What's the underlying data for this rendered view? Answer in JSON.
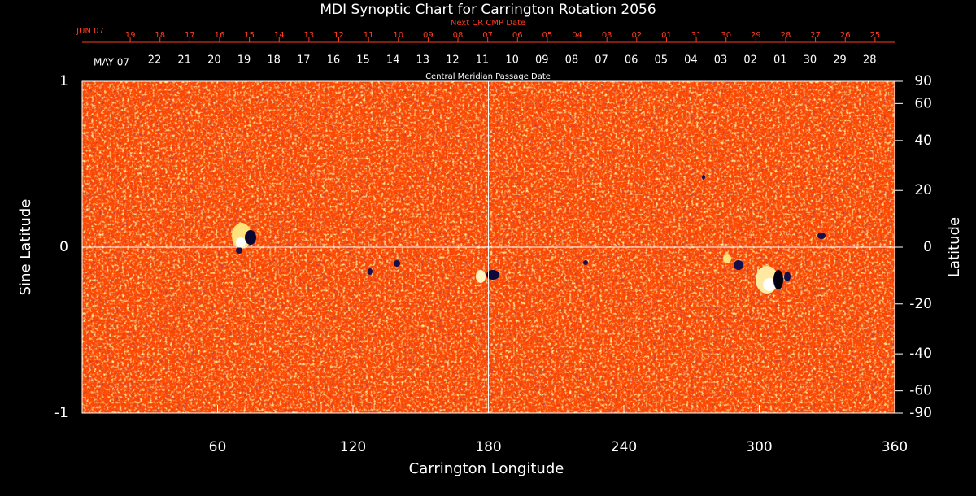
{
  "chart_data": {
    "type": "synoptic-map",
    "title": "MDI Synoptic Chart for Carrington Rotation 2056",
    "xlabel": "Carrington Longitude",
    "ylabel": "Sine Latitude",
    "y2label": "Latitude",
    "xlim": [
      0,
      360
    ],
    "xticks": [
      60,
      120,
      180,
      240,
      300,
      360
    ],
    "ylim": [
      -1,
      1
    ],
    "yticks": [
      -1,
      0,
      1
    ],
    "y2lim": [
      -90,
      90
    ],
    "y2ticks": [
      90,
      60,
      40,
      20,
      0,
      -20,
      -40,
      -60,
      -90
    ],
    "y2scale": "sine",
    "center_lines": true,
    "top_axes": [
      {
        "title": "Next CR CMP Date",
        "start_label": "JUN 07",
        "color": "#ff3c1e",
        "labels": [
          "19",
          "18",
          "17",
          "16",
          "15",
          "14",
          "13",
          "12",
          "11",
          "10",
          "09",
          "08",
          "07",
          "06",
          "05",
          "04",
          "03",
          "02",
          "01",
          "31",
          "30",
          "29",
          "28",
          "27",
          "26",
          "25"
        ],
        "x": [
          21.3,
          34.5,
          47.7,
          60.9,
          74.1,
          87.3,
          100.5,
          113.7,
          126.9,
          140.1,
          153.3,
          166.5,
          179.7,
          192.9,
          206.1,
          219.3,
          232.5,
          245.7,
          258.9,
          272.1,
          285.3,
          298.5,
          311.7,
          324.9,
          338.1,
          351.3
        ]
      },
      {
        "title": "Central Meridian Passage Date",
        "start_label": "MAY 07",
        "color": "#ffffff",
        "labels": [
          "22",
          "21",
          "20",
          "19",
          "18",
          "17",
          "16",
          "15",
          "14",
          "13",
          "12",
          "11",
          "10",
          "09",
          "08",
          "07",
          "06",
          "05",
          "04",
          "03",
          "02",
          "01",
          "30",
          "29",
          "28"
        ],
        "x": [
          32.1,
          45.3,
          58.5,
          71.7,
          84.9,
          98.1,
          111.3,
          124.5,
          137.7,
          150.9,
          164.1,
          177.3,
          190.5,
          203.7,
          216.9,
          230.1,
          243.3,
          256.5,
          269.7,
          282.9,
          296.1,
          309.3,
          322.5,
          335.7,
          348.9
        ]
      }
    ]
  }
}
